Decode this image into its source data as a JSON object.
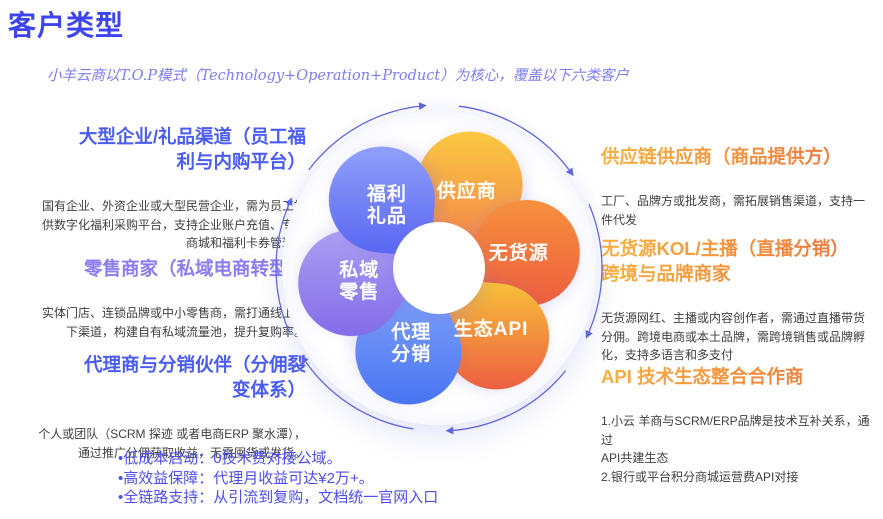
{
  "page": {
    "title": "客户类型",
    "subtitle": "小羊云商以T.O.P模式（Technology+Operation+Product）为核心，覆盖以下六类客户"
  },
  "left_blocks": [
    {
      "heading": "大型企业/礼品渠道（员工福\n利与内购平台）",
      "body": "国有企业、外资企业或大型民营企业，需为员工提\n供数字化福利采购平台，支持企业账户充值、专属\n商城和福利卡券管理。"
    },
    {
      "heading": "零售商家（私域电商转型）",
      "body": "实体门店、连锁品牌或中小零售商，需打通线上线\n下渠道，构建自有私域流量池，提升复购率。"
    },
    {
      "heading": "代理商与分销伙伴（分佣裂\n变体系）",
      "body": "个人或团队（SCRM 探迹 或者电商ERP 聚水潭），\n通过推广分佣获取收益，无需囤货或发货。"
    }
  ],
  "right_blocks": [
    {
      "heading": "供应链供应商（商品提供方）",
      "body": "工厂、品牌方或批发商，需拓展销售渠道，支持一\n件代发"
    },
    {
      "heading": "无货源KOL/主播（直播分销）\n跨境与品牌商家",
      "body": "无货源网红、主播或内容创作者，需通过直播带货\n分佣。跨境电商或本土品牌，需跨境销售或品牌孵\n化，支持多语言和多支付"
    },
    {
      "heading": "API 技术生态整合合作商",
      "body": "1.小云 羊商与SCRM/ERP品牌是技术互补关系，通过\nAPI共建生态\n2.银行或平台积分商城运营费API对接"
    }
  ],
  "chart_data": {
    "type": "flower-cycle-diagram",
    "center_label": "",
    "petals": [
      {
        "label": "供应商",
        "color_start": "#fbd23e",
        "color_end": "#f3814d"
      },
      {
        "label": "无货源",
        "color_start": "#f79b3d",
        "color_end": "#ec5340"
      },
      {
        "label": "生态API",
        "color_start": "#f8c33a",
        "color_end": "#ec5a42"
      },
      {
        "label": "代理\n分销",
        "color_start": "#86a6f8",
        "color_end": "#3f6df2"
      },
      {
        "label": "私域\n零售",
        "color_start": "#b3a9f4",
        "color_end": "#7b62e7"
      },
      {
        "label": "福利\n礼品",
        "color_start": "#93a1fa",
        "color_end": "#5765f2"
      }
    ],
    "flow": "clockwise",
    "arrow_color": "#5e66dd"
  },
  "footer": {
    "bullets": [
      "•低成本启动：0技术费对接公域。",
      "•高效益保障：代理月收益可达¥2万+。",
      "•全链路支持：从引流到复购，文档统一官网入口"
    ]
  },
  "colors": {
    "title": "#3d44ef",
    "subtitle": "#7d7df2",
    "heading_blue": "#4a5cf2",
    "heading_purple": "#8a7cf2",
    "heading_orange_start": "#f9b13c",
    "heading_orange_end": "#ee6f3e",
    "body_text": "#404040",
    "bullet_text": "#4d4df0"
  }
}
